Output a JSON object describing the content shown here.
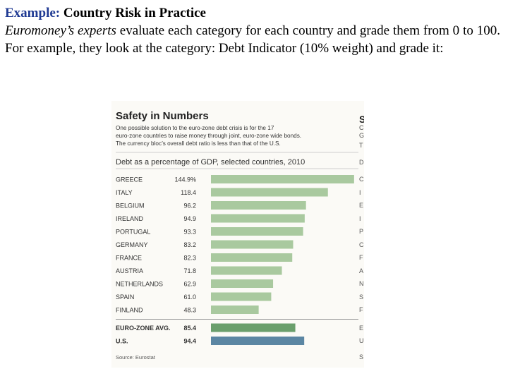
{
  "slide": {
    "heading_label": "Example:",
    "heading_title": "Country Risk in Practice",
    "para_italic": "Euromoney’s experts",
    "para_rest": " evaluate each category for each country and grade them from 0 to 100. For example, they look at the category: Debt Indicator (10% weight) and grade it:"
  },
  "colors": {
    "heading_accent": "#1f3a93",
    "bar_country": "#a9c99f",
    "bar_eurozone": "#6a9f6c",
    "bar_us": "#5b86a3"
  },
  "chart_data": {
    "type": "bar",
    "orientation": "horizontal",
    "title": "Safety in Numbers",
    "subtitle": [
      "One possible solution to the euro-zone debt crisis is for the 17",
      "euro-zone countries to raise money through joint, euro-zone wide bonds.",
      "The currency bloc’s overall debt ratio is less than that of the U.S."
    ],
    "caption": "Debt as a percentage of GDP, selected countries, 2010",
    "categories": [
      "GREECE",
      "ITALY",
      "BELGIUM",
      "IRELAND",
      "PORTUGAL",
      "GERMANY",
      "FRANCE",
      "AUSTRIA",
      "NETHERLANDS",
      "SPAIN",
      "FINLAND",
      "EURO-ZONE AVG.",
      "U.S."
    ],
    "values": [
      144.9,
      118.4,
      96.2,
      94.9,
      93.3,
      83.2,
      82.3,
      71.8,
      62.9,
      61.0,
      48.3,
      85.4,
      94.4
    ],
    "value_labels": [
      "144.9%",
      "118.4",
      "96.2",
      "94.9",
      "93.3",
      "83.2",
      "82.3",
      "71.8",
      "62.9",
      "61.0",
      "48.3",
      "85.4",
      "94.4"
    ],
    "groups": [
      "country",
      "country",
      "country",
      "country",
      "country",
      "country",
      "country",
      "country",
      "country",
      "country",
      "country",
      "eurozone",
      "us"
    ],
    "xlim": [
      0,
      145
    ],
    "source": "Source: Eurostat",
    "cut_off_column": [
      "S",
      "C",
      "G",
      "T",
      "D",
      "C",
      "I",
      "E",
      "I",
      "P",
      "C",
      "F",
      "A",
      "N",
      "S",
      "F",
      "E",
      "U",
      "S"
    ]
  }
}
